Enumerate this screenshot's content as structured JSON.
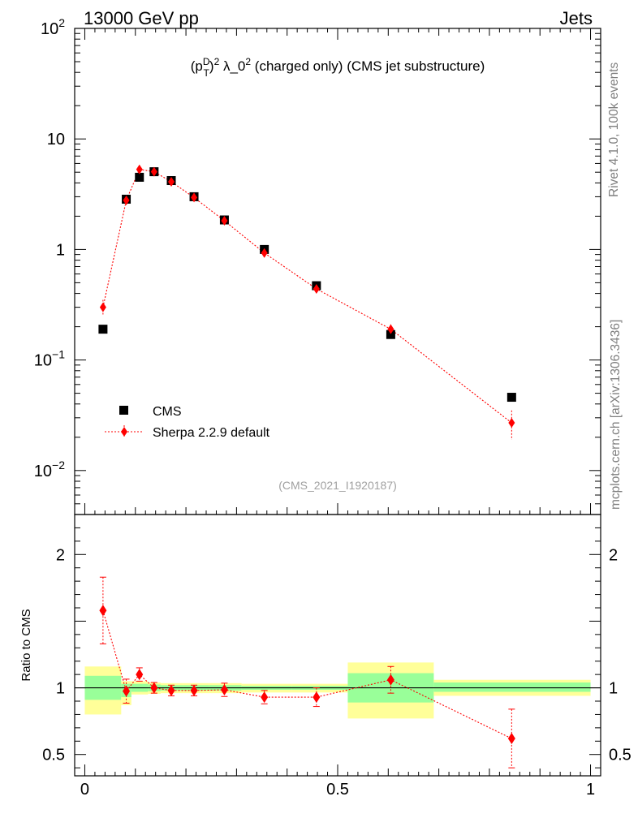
{
  "header": {
    "left": "13000 GeV pp",
    "right": "Jets"
  },
  "title": {
    "base": "(p",
    "sup_D": "D",
    "sub_T": "T",
    "close": ")",
    "sup_2": "2",
    "lambda": " λ_0",
    "sup_2b": "2",
    "rest": " (charged only) (CMS jet substructure)"
  },
  "side_labels": {
    "rivet": "Rivet 4.1.0,  100k events",
    "mcplots": "mcplots.cern.ch [arXiv:1306.3436]"
  },
  "analysis_id": "(CMS_2021_I1920187)",
  "legend": {
    "data_label": "CMS",
    "mc_label": "Sherpa 2.2.9 default"
  },
  "colors": {
    "data": "#000000",
    "mc": "#ff0000",
    "band_inner": "#99ff99",
    "band_outer": "#ffff99"
  },
  "chart_data": [
    {
      "type": "scatter",
      "panel": "main",
      "yscale": "log",
      "xlim": [
        -0.02,
        1.02
      ],
      "ylim": [
        0.004,
        100
      ],
      "yticks": [
        {
          "base": "10",
          "exp": "2"
        },
        {
          "base": "10",
          "exp": ""
        },
        {
          "base": "1",
          "exp": ""
        },
        {
          "base": "10",
          "exp": "−1"
        },
        {
          "base": "10",
          "exp": "−2"
        }
      ],
      "ytick_values": [
        100,
        10,
        1,
        0.1,
        0.01
      ],
      "series": [
        {
          "name": "CMS",
          "x": [
            0.036,
            0.082,
            0.108,
            0.137,
            0.171,
            0.216,
            0.276,
            0.355,
            0.458,
            0.605,
            0.844
          ],
          "y": [
            0.19,
            2.85,
            4.5,
            5.05,
            4.2,
            3.0,
            1.85,
            1.0,
            0.47,
            0.17,
            0.046
          ]
        },
        {
          "name": "Sherpa 2.2.9 default",
          "x": [
            0.036,
            0.082,
            0.108,
            0.137,
            0.171,
            0.216,
            0.276,
            0.355,
            0.458,
            0.605,
            0.844
          ],
          "y": [
            0.3,
            2.78,
            5.3,
            5.05,
            4.1,
            2.95,
            1.82,
            0.93,
            0.44,
            0.19,
            0.027
          ],
          "yerr_low": [
            0.05,
            0.2,
            0.3,
            0.25,
            0.2,
            0.15,
            0.1,
            0.06,
            0.04,
            0.02,
            0.008
          ],
          "yerr_high": [
            0.05,
            0.2,
            0.3,
            0.25,
            0.2,
            0.15,
            0.1,
            0.06,
            0.04,
            0.02,
            0.008
          ]
        }
      ]
    },
    {
      "type": "scatter",
      "panel": "ratio",
      "ylabel": "Ratio to CMS",
      "xlim": [
        -0.02,
        1.02
      ],
      "ylim": [
        0.34,
        2.3
      ],
      "xticks": [
        0,
        0.5,
        1
      ],
      "xtick_labels": [
        "0",
        "0.5",
        "1"
      ],
      "yticks": [
        0.5,
        1,
        2
      ],
      "ytick_labels": [
        "0.5",
        "1",
        "2"
      ],
      "bands": [
        {
          "x0": 0.0,
          "x1": 0.072,
          "inner": [
            0.91,
            1.09
          ],
          "outer": [
            0.8,
            1.16
          ]
        },
        {
          "x0": 0.072,
          "x1": 0.092,
          "inner": [
            0.93,
            1.03
          ],
          "outer": [
            0.87,
            1.05
          ]
        },
        {
          "x0": 0.092,
          "x1": 0.125,
          "inner": [
            0.97,
            1.03
          ],
          "outer": [
            0.95,
            1.05
          ]
        },
        {
          "x0": 0.125,
          "x1": 0.15,
          "inner": [
            0.975,
            1.025
          ],
          "outer": [
            0.955,
            1.04
          ]
        },
        {
          "x0": 0.15,
          "x1": 0.195,
          "inner": [
            0.98,
            1.02
          ],
          "outer": [
            0.96,
            1.035
          ]
        },
        {
          "x0": 0.195,
          "x1": 0.245,
          "inner": [
            0.98,
            1.02
          ],
          "outer": [
            0.96,
            1.035
          ]
        },
        {
          "x0": 0.245,
          "x1": 0.31,
          "inner": [
            0.98,
            1.02
          ],
          "outer": [
            0.96,
            1.035
          ]
        },
        {
          "x0": 0.31,
          "x1": 0.41,
          "inner": [
            0.985,
            1.015
          ],
          "outer": [
            0.965,
            1.03
          ]
        },
        {
          "x0": 0.41,
          "x1": 0.52,
          "inner": [
            0.985,
            1.015
          ],
          "outer": [
            0.965,
            1.03
          ]
        },
        {
          "x0": 0.52,
          "x1": 0.69,
          "inner": [
            0.89,
            1.11
          ],
          "outer": [
            0.77,
            1.19
          ]
        },
        {
          "x0": 0.69,
          "x1": 1.0,
          "inner": [
            0.97,
            1.04
          ],
          "outer": [
            0.94,
            1.06
          ]
        }
      ],
      "series": [
        {
          "name": "Sherpa 2.2.9 default",
          "x": [
            0.036,
            0.082,
            0.108,
            0.137,
            0.171,
            0.216,
            0.276,
            0.355,
            0.458,
            0.605,
            0.844
          ],
          "y": [
            1.58,
            0.975,
            1.1,
            1.0,
            0.98,
            0.98,
            0.985,
            0.93,
            0.93,
            1.06,
            0.62
          ],
          "yerr_low": [
            0.25,
            0.09,
            0.05,
            0.04,
            0.04,
            0.04,
            0.05,
            0.05,
            0.07,
            0.1,
            0.22
          ],
          "yerr_high": [
            0.25,
            0.09,
            0.05,
            0.04,
            0.04,
            0.04,
            0.05,
            0.05,
            0.07,
            0.1,
            0.22
          ]
        }
      ]
    }
  ]
}
